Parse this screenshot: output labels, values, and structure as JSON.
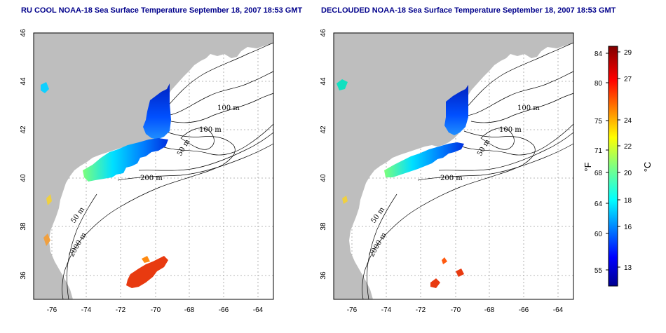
{
  "titles": {
    "left": "RU COOL NOAA-18 Sea Surface Temperature September 18, 2007 18:53 GMT",
    "right": "DECLOUDED NOAA-18 Sea Surface Temperature September 18, 2007 18:53 GMT"
  },
  "colors": {
    "title": "#00008b",
    "land": "#bebebe",
    "grid": "#a0a0a0"
  },
  "axes": {
    "x_ticks": [
      "-76",
      "-74",
      "-72",
      "-70",
      "-68",
      "-66",
      "-64"
    ],
    "y_ticks": [
      "36",
      "38",
      "40",
      "42",
      "44",
      "46"
    ]
  },
  "contour_labels": [
    "100 m",
    "100 m",
    "50 m",
    "200 m",
    "50 m",
    "2000 m"
  ],
  "colorbar": {
    "f_label": "°F",
    "c_label": "°C",
    "f_ticks": [
      "84",
      "80",
      "75",
      "71",
      "68",
      "64",
      "60",
      "55"
    ],
    "c_ticks": [
      "29",
      "27",
      "24",
      "22",
      "20",
      "18",
      "16",
      "13"
    ]
  }
}
